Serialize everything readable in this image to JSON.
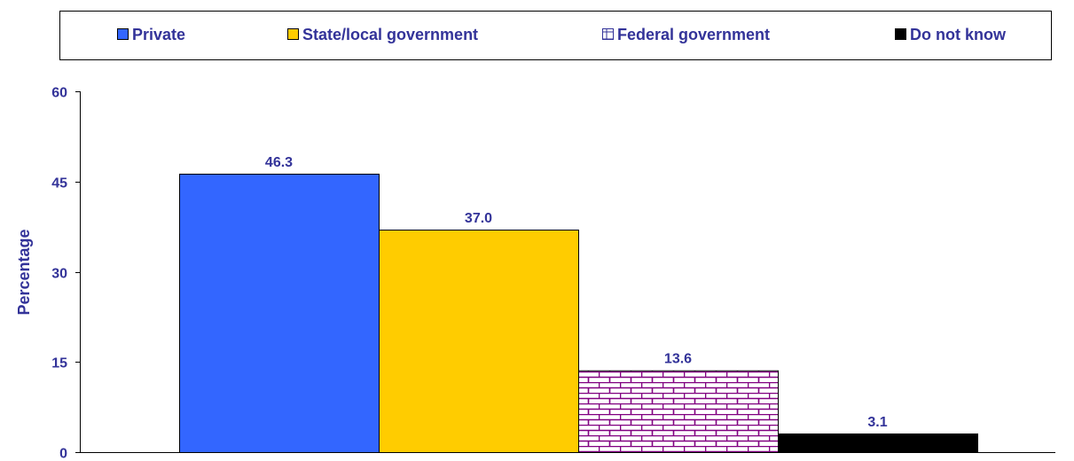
{
  "chart_data": {
    "type": "bar",
    "categories": [
      "Private",
      "State/local government",
      "Federal government",
      "Do not know"
    ],
    "values": [
      46.3,
      37.0,
      13.6,
      3.1
    ],
    "data_labels": [
      "46.3",
      "37.0",
      "13.6",
      "3.1"
    ],
    "series_colors": [
      "#3366ff",
      "#ffcc00",
      "brick-pattern-purple",
      "#000000"
    ],
    "legend": [
      "Private",
      "State/local government",
      "Federal government",
      "Do not know"
    ],
    "legend_position": "top",
    "title": "",
    "xlabel": "",
    "ylabel": "Percentage",
    "ylim": [
      0,
      60
    ],
    "yticks": [
      0,
      15,
      30,
      45,
      60
    ],
    "ytick_labels": [
      "0",
      "15",
      "30",
      "45",
      "60"
    ],
    "grid": false
  },
  "colors": {
    "text": "#333399",
    "pattern_line": "#800080",
    "axis": "#000000"
  }
}
